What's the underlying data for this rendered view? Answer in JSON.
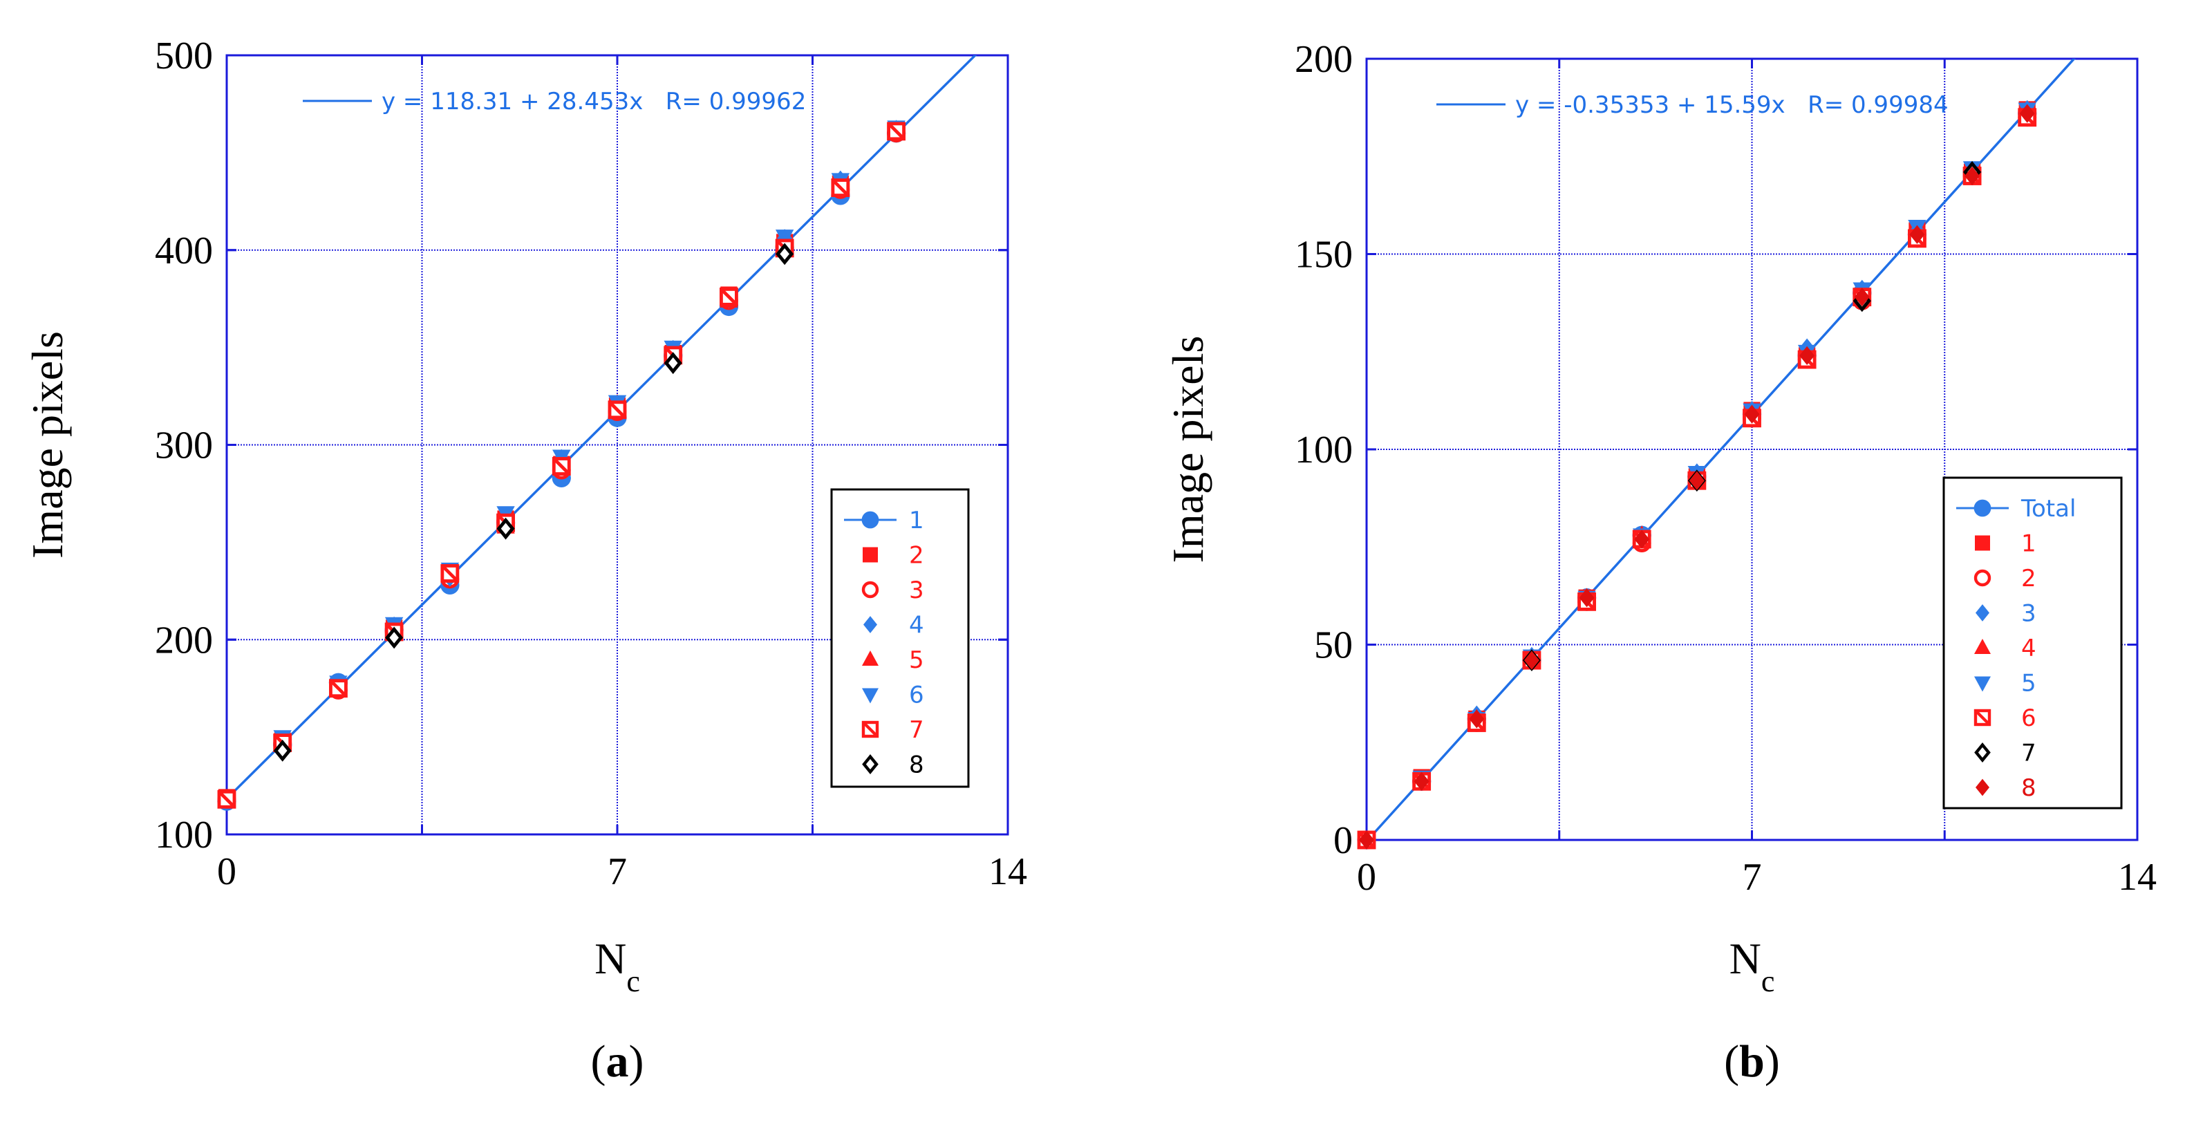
{
  "chart_data": [
    {
      "type": "scatter",
      "panel_label_open": "(",
      "panel_label": "a",
      "panel_label_close": ")",
      "xlabel": "N",
      "xlabel_sub": "c",
      "ylabel": "Image pixels",
      "xlim": [
        0,
        14
      ],
      "ylim": [
        100,
        500
      ],
      "xticks": [
        0,
        7,
        14
      ],
      "yticks": [
        100,
        200,
        300,
        400,
        500
      ],
      "grid": true,
      "grid_x": [
        3.5,
        7,
        10.5
      ],
      "grid_y": [
        200,
        300,
        400
      ],
      "fit": {
        "text": "y = 118.31 + 28.453x   R= 0.99962",
        "intercept": 118.31,
        "slope": 28.453,
        "color": "#1f6fe6"
      },
      "legend_position": "right-middle",
      "series": [
        {
          "name": "1",
          "marker": "circle",
          "color": "#2f7de8",
          "line": true,
          "x": [
            0,
            1,
            2,
            3,
            4,
            5,
            6,
            7,
            8,
            9,
            10,
            11,
            12
          ],
          "y": [
            117,
            146,
            178,
            205,
            228,
            260,
            283,
            314,
            346,
            371,
            401,
            428,
            460
          ]
        },
        {
          "name": "2",
          "marker": "square",
          "color": "#ff1a1a",
          "x": [
            0,
            1,
            2,
            3,
            4,
            5,
            6,
            7,
            8,
            9,
            10,
            11,
            12
          ],
          "y": [
            119,
            148,
            175,
            206,
            234,
            262,
            290,
            320,
            347,
            377,
            404,
            434,
            462
          ]
        },
        {
          "name": "3",
          "marker": "circle-open",
          "color": "#ff1a1a",
          "x": [
            0,
            1,
            2,
            3,
            4,
            5,
            6,
            7,
            8,
            9,
            10,
            11,
            12
          ],
          "y": [
            118,
            147,
            174,
            204,
            231,
            261,
            287,
            317,
            345,
            374,
            402,
            431,
            460
          ]
        },
        {
          "name": "4",
          "marker": "diamond",
          "color": "#2f7de8",
          "x": [
            0,
            1,
            2,
            3,
            4,
            5,
            6,
            7,
            8,
            9,
            10,
            11,
            12
          ],
          "y": [
            118,
            148,
            178,
            207,
            232,
            263,
            293,
            321,
            349,
            375,
            406,
            436,
            462
          ]
        },
        {
          "name": "5",
          "marker": "triangle-up",
          "color": "#ff1a1a",
          "x": [
            0,
            1,
            2,
            3,
            4,
            5,
            6,
            7,
            8,
            9,
            10,
            11,
            12
          ],
          "y": [
            118,
            146,
            174,
            203,
            233,
            258,
            289,
            321,
            346,
            374,
            401,
            434,
            461
          ]
        },
        {
          "name": "6",
          "marker": "triangle-down",
          "color": "#2f7de8",
          "x": [
            0,
            1,
            2,
            3,
            4,
            5,
            6,
            7,
            8,
            9,
            10,
            11,
            12
          ],
          "y": [
            119,
            150,
            178,
            208,
            236,
            265,
            294,
            322,
            350,
            377,
            407,
            436,
            463
          ]
        },
        {
          "name": "7",
          "marker": "square-crossed",
          "color": "#ff1a1a",
          "x": [
            0,
            1,
            2,
            3,
            4,
            5,
            6,
            7,
            8,
            9,
            10,
            11,
            12
          ],
          "y": [
            118,
            147,
            175,
            204,
            234,
            260,
            289,
            318,
            346,
            376,
            401,
            432,
            461
          ]
        },
        {
          "name": "8",
          "marker": "diamond-open",
          "color": "#000000",
          "x": [
            1,
            3,
            5,
            8,
            10
          ],
          "y": [
            143,
            201,
            257,
            342,
            398
          ]
        }
      ]
    },
    {
      "type": "scatter",
      "panel_label_open": "(",
      "panel_label": "b",
      "panel_label_close": ")",
      "xlabel": "N",
      "xlabel_sub": "c",
      "ylabel": "Image pixels",
      "xlim": [
        0,
        14
      ],
      "ylim": [
        0,
        200
      ],
      "xticks": [
        0,
        7,
        14
      ],
      "yticks": [
        0,
        50,
        100,
        150,
        200
      ],
      "grid": true,
      "grid_x": [
        3.5,
        7,
        10.5
      ],
      "grid_y": [
        50,
        100,
        150
      ],
      "fit": {
        "text": "y = -0.35353 + 15.59x   R= 0.99984",
        "intercept": -0.35353,
        "slope": 15.59,
        "color": "#1f6fe6"
      },
      "legend_position": "right-lower",
      "series": [
        {
          "name": "Total",
          "marker": "circle",
          "color": "#2f7de8",
          "line": true,
          "x": [
            0,
            1,
            2,
            3,
            4,
            5,
            6,
            7,
            8,
            9,
            10,
            11,
            12
          ],
          "y": [
            0,
            15,
            31,
            46,
            62,
            78,
            93,
            109,
            124,
            140,
            155,
            171,
            186
          ]
        },
        {
          "name": "1",
          "marker": "square",
          "color": "#ff1a1a",
          "x": [
            0,
            1,
            2,
            3,
            4,
            5,
            6,
            7,
            8,
            9,
            10,
            11,
            12
          ],
          "y": [
            0,
            16,
            31,
            46,
            62,
            77,
            93,
            110,
            124,
            139,
            156,
            171,
            187
          ]
        },
        {
          "name": "2",
          "marker": "circle-open",
          "color": "#ff1a1a",
          "x": [
            0,
            1,
            2,
            3,
            4,
            5,
            6,
            7,
            8,
            9,
            10,
            11,
            12
          ],
          "y": [
            0,
            15,
            30,
            46,
            61,
            76,
            92,
            108,
            123,
            138,
            154,
            170,
            185
          ]
        },
        {
          "name": "3",
          "marker": "diamond",
          "color": "#2f7de8",
          "x": [
            0,
            1,
            2,
            3,
            4,
            5,
            6,
            7,
            8,
            9,
            10,
            11,
            12
          ],
          "y": [
            0,
            15,
            32,
            47,
            62,
            78,
            94,
            110,
            126,
            141,
            156,
            171,
            187
          ]
        },
        {
          "name": "4",
          "marker": "triangle-up",
          "color": "#ff1a1a",
          "x": [
            0,
            1,
            2,
            3,
            4,
            5,
            6,
            7,
            8,
            9,
            10,
            11,
            12
          ],
          "y": [
            0,
            15,
            31,
            46,
            62,
            78,
            93,
            109,
            124,
            140,
            155,
            170,
            186
          ]
        },
        {
          "name": "5",
          "marker": "triangle-down",
          "color": "#2f7de8",
          "x": [
            0,
            1,
            2,
            3,
            4,
            5,
            6,
            7,
            8,
            9,
            10,
            11,
            12
          ],
          "y": [
            0,
            16,
            31,
            47,
            62,
            78,
            94,
            110,
            125,
            141,
            157,
            172,
            187
          ]
        },
        {
          "name": "6",
          "marker": "square-crossed",
          "color": "#ff1a1a",
          "x": [
            0,
            1,
            2,
            3,
            4,
            5,
            6,
            7,
            8,
            9,
            10,
            11,
            12
          ],
          "y": [
            0,
            15,
            30,
            46,
            61,
            77,
            92,
            108,
            123,
            139,
            154,
            170,
            185
          ]
        },
        {
          "name": "7",
          "marker": "diamond-open",
          "color": "#000000",
          "x": [
            3,
            6,
            9,
            11
          ],
          "y": [
            46,
            92,
            138,
            171
          ]
        },
        {
          "name": "8",
          "marker": "diamond",
          "color": "#e01010",
          "x": [
            0,
            1,
            2,
            3,
            4,
            5,
            6,
            7,
            8,
            9,
            10,
            11,
            12
          ],
          "y": [
            0,
            15,
            31,
            46,
            62,
            77,
            92,
            109,
            124,
            139,
            155,
            170,
            186
          ]
        }
      ]
    }
  ]
}
